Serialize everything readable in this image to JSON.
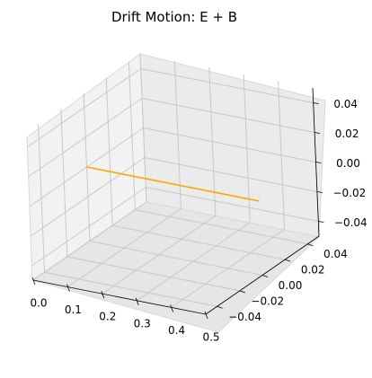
{
  "chart_data": {
    "type": "line",
    "title": "Drift Motion: E + B",
    "projection": "3d",
    "grid": true,
    "x_ticks": [
      "0.0",
      "0.1",
      "0.2",
      "0.3",
      "0.4",
      "0.5"
    ],
    "y_ticks": [
      "−0.04",
      "−0.02",
      "0.00",
      "0.02",
      "0.04"
    ],
    "z_ticks": [
      "−0.04",
      "−0.02",
      "0.00",
      "0.02",
      "0.04"
    ],
    "xlim": [
      0,
      0.5
    ],
    "ylim": [
      -0.05,
      0.05
    ],
    "zlim": [
      -0.05,
      0.05
    ],
    "series": [
      {
        "color": "#ffa500",
        "x": [
          0.0,
          0.5
        ],
        "y": [
          0.0,
          0.0
        ],
        "z": [
          0.0,
          0.0
        ]
      }
    ]
  }
}
